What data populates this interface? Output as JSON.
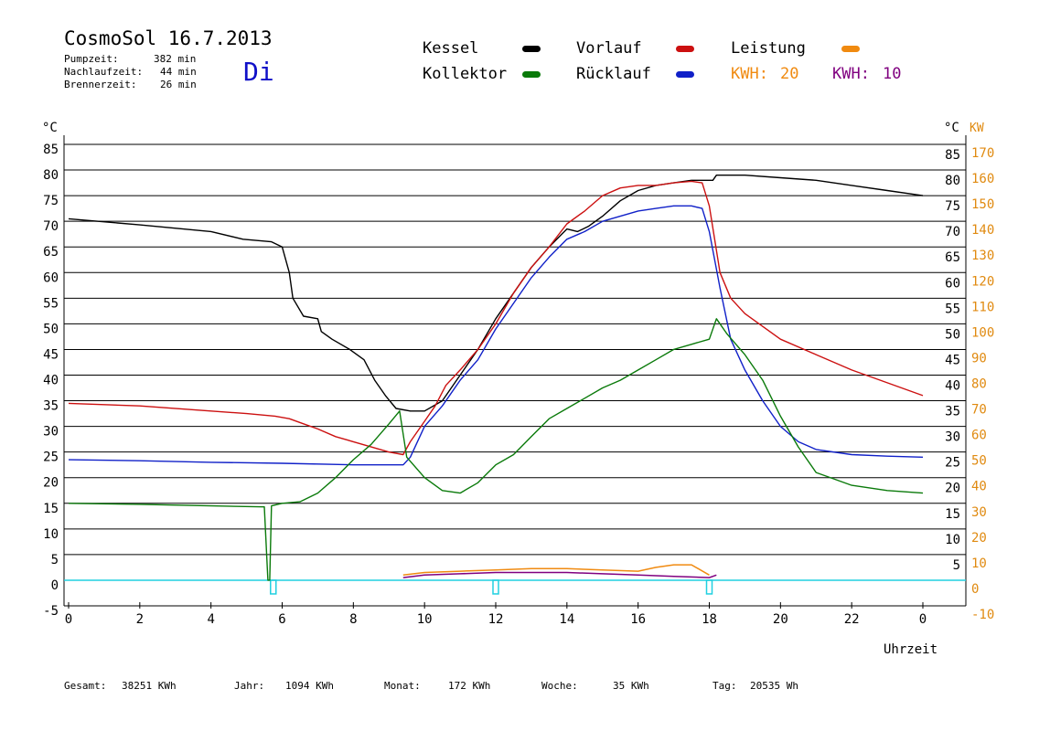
{
  "header": {
    "title": "CosmoSol 16.7.2013",
    "day": "Di",
    "stats": [
      {
        "label": "Pumpzeit:",
        "value": "382 min"
      },
      {
        "label": "Nachlaufzeit:",
        "value": "44 min"
      },
      {
        "label": "Brennerzeit:",
        "value": "26 min"
      }
    ]
  },
  "legend": {
    "kessel": "Kessel",
    "kollektor": "Kollektor",
    "vorlauf": "Vorlauf",
    "ruecklauf": "Rücklauf",
    "leistung": "Leistung",
    "kwh1_label": "KWH:",
    "kwh1_value": "20",
    "kwh2_label": "KWH:",
    "kwh2_value": "10"
  },
  "colors": {
    "kessel": "#000000",
    "kollektor": "#0a7a0a",
    "vorlauf": "#cc1010",
    "ruecklauf": "#1020c8",
    "leistung": "#f08a10",
    "kwh2": "#800080",
    "baseline": "#20d0e0",
    "day": "#1010c8"
  },
  "footer": {
    "gesamt_label": "Gesamt:",
    "gesamt_value": "38251 KWh",
    "jahr_label": "Jahr:",
    "jahr_value": "1094 KWh",
    "monat_label": "Monat:",
    "monat_value": "172 KWh",
    "woche_label": "Woche:",
    "woche_value": "35 KWh",
    "tag_label": "Tag:",
    "tag_value": "20535 Wh"
  },
  "chart_data": {
    "type": "line",
    "xlabel": "Uhrzeit",
    "ylabel_left": "°C",
    "ylabel_right_unit": "°C",
    "ylabel_right_unit2": "KW",
    "xlim": [
      0,
      24
    ],
    "ylim": [
      -5,
      85
    ],
    "x_ticks": [
      "0",
      "2",
      "4",
      "6",
      "8",
      "10",
      "12",
      "14",
      "16",
      "18",
      "20",
      "22",
      "0"
    ],
    "y_ticks": [
      "85",
      "80",
      "75",
      "70",
      "65",
      "60",
      "55",
      "50",
      "45",
      "40",
      "35",
      "30",
      "25",
      "20",
      "15",
      "10",
      "5",
      "0",
      "-5"
    ],
    "y_ticks_right": [
      "85",
      "80",
      "75",
      "70",
      "65",
      "60",
      "55",
      "50",
      "45",
      "40",
      "35",
      "30",
      "25",
      "20",
      "15",
      "10",
      "5"
    ],
    "kw_ticks": [
      "170",
      "160",
      "150",
      "140",
      "130",
      "120",
      "110",
      "100",
      "90",
      "80",
      "70",
      "60",
      "50",
      "40",
      "30",
      "20",
      "10",
      "0",
      "-10"
    ],
    "grid": true,
    "series": [
      {
        "name": "Kessel",
        "key": "kessel",
        "x": [
          0,
          2,
          4,
          4.9,
          5.7,
          6.0,
          6.2,
          6.3,
          6.6,
          7.0,
          7.1,
          7.4,
          7.9,
          8.3,
          8.6,
          8.9,
          9.2,
          9.6,
          10.0,
          10.5,
          11.0,
          11.5,
          12.0,
          12.5,
          13.0,
          13.5,
          14.0,
          14.3,
          14.6,
          15.0,
          15.5,
          16.0,
          16.5,
          17.0,
          17.5,
          18.0,
          18.1,
          18.2,
          18.3,
          19.0,
          20.0,
          21.0,
          22.0,
          23.0,
          24.0
        ],
        "y": [
          70.5,
          69.3,
          68,
          66.5,
          66,
          65,
          60,
          55,
          51.5,
          51,
          48.5,
          47,
          45,
          43,
          39,
          36,
          33.5,
          33,
          33,
          35,
          40,
          45,
          51,
          56,
          61,
          65,
          68.5,
          68,
          69,
          71,
          74,
          76,
          77,
          77.5,
          78,
          78,
          78,
          79,
          79,
          79,
          78.5,
          78,
          77,
          76,
          75
        ]
      },
      {
        "name": "Vorlauf",
        "key": "vorlauf",
        "x": [
          0,
          2,
          4,
          5,
          5.8,
          6.2,
          6.6,
          7.0,
          7.5,
          8.0,
          8.5,
          9.0,
          9.4,
          9.6,
          10.0,
          10.3,
          10.6,
          11.0,
          11.5,
          12.0,
          12.5,
          13.0,
          13.5,
          14.0,
          14.5,
          15.0,
          15.5,
          16.0,
          16.5,
          17.0,
          17.5,
          17.8,
          18.0,
          18.3,
          18.6,
          19.0,
          20.0,
          21.0,
          22.0,
          23.0,
          24.0
        ],
        "y": [
          34.5,
          34,
          33,
          32.5,
          32,
          31.5,
          30.5,
          29.5,
          28,
          27,
          26,
          25,
          24.5,
          27,
          31,
          34,
          38,
          41,
          45,
          50,
          56,
          61,
          65,
          69.5,
          72,
          75,
          76.5,
          77,
          77,
          77.5,
          77.8,
          77.5,
          73,
          60,
          55,
          52,
          47,
          44,
          41,
          38.5,
          36
        ]
      },
      {
        "name": "Rücklauf",
        "key": "ruecklauf",
        "x": [
          0,
          2,
          4,
          6,
          8,
          9.4,
          9.6,
          10.0,
          10.5,
          11.0,
          11.5,
          12.0,
          12.5,
          13.0,
          13.5,
          14.0,
          14.5,
          15.0,
          15.5,
          16.0,
          16.5,
          17.0,
          17.5,
          17.8,
          18.0,
          18.3,
          18.6,
          19.0,
          19.5,
          20.0,
          20.5,
          21.0,
          22.0,
          23.0,
          24.0
        ],
        "y": [
          23.5,
          23.3,
          23,
          22.8,
          22.5,
          22.5,
          24,
          30,
          34,
          39,
          43,
          49,
          54,
          59,
          63,
          66.5,
          68,
          70,
          71,
          72,
          72.5,
          73,
          73,
          72.5,
          68,
          57,
          47,
          41,
          35,
          30,
          27,
          25.5,
          24.5,
          24.2,
          24
        ]
      },
      {
        "name": "Kollektor",
        "key": "kollektor",
        "x": [
          0,
          2,
          4,
          5.5,
          5.6,
          5.65,
          5.7,
          6.0,
          6.5,
          7.0,
          7.5,
          8.0,
          8.5,
          9.0,
          9.3,
          9.5,
          10.0,
          10.5,
          11.0,
          11.5,
          12.0,
          12.5,
          13.0,
          13.5,
          14.0,
          14.5,
          15.0,
          15.5,
          16.0,
          16.5,
          17.0,
          17.5,
          18.0,
          18.2,
          18.5,
          19.0,
          19.5,
          20.0,
          20.5,
          21.0,
          22.0,
          23.0,
          24.0
        ],
        "y": [
          15,
          14.8,
          14.5,
          14.3,
          0,
          0,
          14.5,
          15,
          15.3,
          17,
          20,
          23.5,
          26.5,
          30.5,
          33,
          24,
          20,
          17.5,
          17,
          19,
          22.5,
          24.5,
          28,
          31.5,
          33.5,
          35.5,
          37.5,
          39,
          41,
          43,
          45,
          46,
          47,
          51,
          48,
          44,
          39,
          32,
          26,
          21,
          18.5,
          17.5,
          17
        ]
      }
    ],
    "kw_series": [
      {
        "name": "KWH: 20",
        "key": "leistung",
        "x": [
          9.4,
          10.0,
          11.0,
          12.0,
          13.0,
          14.0,
          15.0,
          16.0,
          16.5,
          17.0,
          17.5,
          18.0
        ],
        "y": [
          2,
          3,
          3.5,
          4,
          4.5,
          4.5,
          4,
          3.5,
          5,
          6,
          6,
          2
        ]
      },
      {
        "name": "KWH: 10",
        "key": "kwh2",
        "x": [
          9.4,
          10.0,
          11.0,
          12.0,
          13.0,
          14.0,
          15.0,
          16.0,
          17.0,
          18.0,
          18.2
        ],
        "y": [
          1,
          2,
          2.5,
          3,
          3,
          3,
          2.5,
          2,
          1.5,
          1,
          2
        ]
      }
    ],
    "pump_markers": [
      5.75,
      12.0,
      18.0
    ]
  }
}
